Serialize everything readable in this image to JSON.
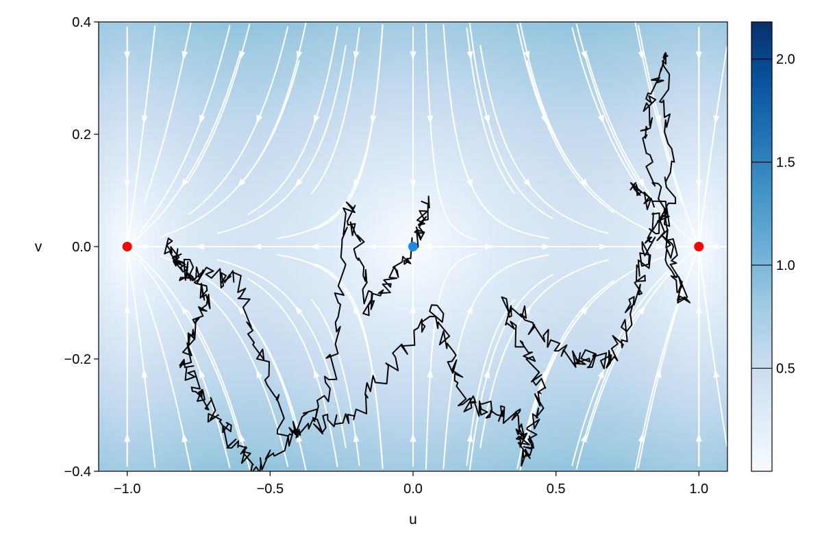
{
  "chart_data": {
    "type": "heatmap",
    "title": "",
    "xlabel": "u",
    "ylabel": "v",
    "xlim": [
      -1.1,
      1.1
    ],
    "ylim": [
      -0.4,
      0.4
    ],
    "x_ticks": [
      -1.0,
      -0.5,
      0.0,
      0.5,
      1.0
    ],
    "x_tick_labels": [
      "−1.0",
      "−0.5",
      "0.0",
      "0.5",
      "1.0"
    ],
    "y_ticks": [
      -0.4,
      -0.2,
      0.0,
      0.2,
      0.4
    ],
    "y_tick_labels": [
      "−0.4",
      "−0.2",
      "0.0",
      "0.2",
      "0.4"
    ],
    "grid": false,
    "heatmap": {
      "description": "vector field magnitude, colormap Blues",
      "colormap": "Blues",
      "colorbar_range": [
        0.0,
        2.18
      ],
      "colorbar_ticks": [
        0.5,
        1.0,
        1.5,
        2.0
      ],
      "colorbar_tick_labels": [
        "0.5",
        "1.0",
        "1.5",
        "2.0"
      ]
    },
    "streamplot": {
      "color": "#ffffff",
      "field": "du = u - u^3 (approx.), dv = -2v (approx.)"
    },
    "points": [
      {
        "u": -1.0,
        "v": 0.0,
        "color": "#ff0000"
      },
      {
        "u": 0.0,
        "v": 0.0,
        "color": "#1e88e5"
      },
      {
        "u": 1.0,
        "v": 0.0,
        "color": "#ff0000"
      }
    ],
    "trajectory_color": "#000000",
    "trajectory_description": "stochastic sample path wandering between the three fixed points"
  }
}
